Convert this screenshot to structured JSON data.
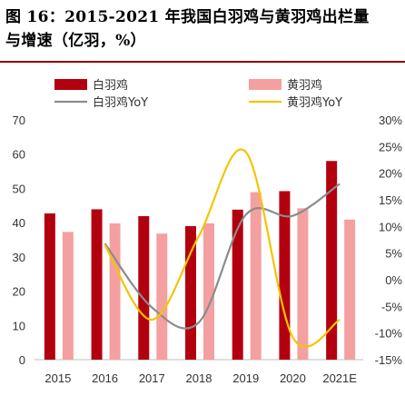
{
  "title": {
    "line1": "图 16：2015-2021 年我国白羽鸡与黄羽鸡出栏量",
    "line2": "与增速（亿羽，%）"
  },
  "colors": {
    "white_bar": "#b3000f",
    "yellow_bar": "#f4a0a0",
    "white_line": "#8c8c8c",
    "yellow_line": "#f5c400",
    "title_rule": "#8b0000"
  },
  "chart_data": {
    "type": "bar",
    "categories": [
      "2015",
      "2016",
      "2017",
      "2018",
      "2019",
      "2020",
      "2021E"
    ],
    "series": [
      {
        "name": "白羽鸡",
        "kind": "bar",
        "axis": "left",
        "values": [
          42.7,
          43.9,
          41.9,
          39.0,
          43.8,
          49.2,
          58.0
        ]
      },
      {
        "name": "黄羽鸡",
        "kind": "bar",
        "axis": "left",
        "values": [
          37.3,
          39.8,
          36.8,
          39.8,
          48.9,
          44.2,
          40.9
        ]
      },
      {
        "name": "白羽鸡YoY",
        "kind": "line",
        "axis": "right",
        "values": [
          null,
          6.8,
          -5.2,
          -8.0,
          12.2,
          12.0,
          18.0
        ]
      },
      {
        "name": "黄羽鸡YoY",
        "kind": "line",
        "axis": "right",
        "values": [
          null,
          6.5,
          -7.5,
          8.2,
          24.0,
          -10.8,
          -7.5
        ]
      }
    ],
    "left_axis": {
      "min": 0,
      "max": 70,
      "ticks": [
        "0",
        "10",
        "20",
        "30",
        "40",
        "50",
        "60",
        "70"
      ]
    },
    "right_axis": {
      "min": -15,
      "max": 30,
      "ticks": [
        "-15%",
        "-10%",
        "-5%",
        "0%",
        "5%",
        "10%",
        "15%",
        "20%",
        "25%",
        "30%"
      ]
    },
    "legend_position": "top",
    "grid": false
  }
}
